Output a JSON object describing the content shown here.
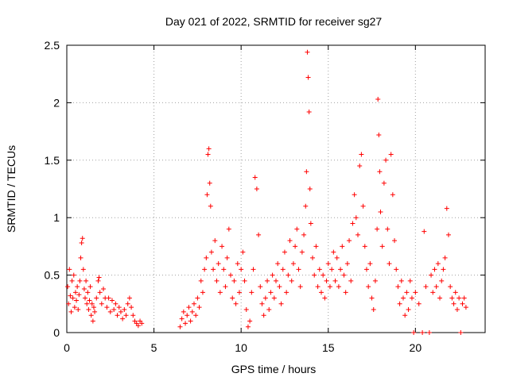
{
  "chart_data": {
    "type": "scatter",
    "title": "Day 021 of 2022, SRMTID for receiver sg27",
    "xlabel": "GPS time / hours",
    "ylabel": "SRMTID / TECUs",
    "xlim": [
      0,
      24
    ],
    "ylim": [
      0,
      2.5
    ],
    "x_ticks": [
      0,
      5,
      10,
      15,
      20
    ],
    "x_tick_labels": [
      "0",
      "5",
      "10",
      "15",
      "20"
    ],
    "y_ticks": [
      0,
      0.5,
      1,
      1.5,
      2,
      2.5
    ],
    "y_tick_labels": [
      "0",
      "0.5",
      "1",
      "1.5",
      "2",
      "2.5"
    ],
    "grid": true,
    "series": [
      {
        "name": "SRMTID sg27",
        "marker": "+",
        "color": "#ff0000",
        "points": [
          [
            0.05,
            0.4
          ],
          [
            0.1,
            0.25
          ],
          [
            0.15,
            0.55
          ],
          [
            0.2,
            0.32
          ],
          [
            0.25,
            0.18
          ],
          [
            0.3,
            0.45
          ],
          [
            0.35,
            0.3
          ],
          [
            0.4,
            0.5
          ],
          [
            0.45,
            0.22
          ],
          [
            0.5,
            0.35
          ],
          [
            0.55,
            0.28
          ],
          [
            0.6,
            0.4
          ],
          [
            0.65,
            0.2
          ],
          [
            0.7,
            0.33
          ],
          [
            0.75,
            0.45
          ],
          [
            0.8,
            0.65
          ],
          [
            0.85,
            0.78
          ],
          [
            0.9,
            0.82
          ],
          [
            0.95,
            0.55
          ],
          [
            1.0,
            0.38
          ],
          [
            1.05,
            0.3
          ],
          [
            1.1,
            0.45
          ],
          [
            1.15,
            0.25
          ],
          [
            1.2,
            0.35
          ],
          [
            1.25,
            0.2
          ],
          [
            1.3,
            0.28
          ],
          [
            1.35,
            0.4
          ],
          [
            1.4,
            0.15
          ],
          [
            1.45,
            0.25
          ],
          [
            1.5,
            0.1
          ],
          [
            1.55,
            0.22
          ],
          [
            1.6,
            0.18
          ],
          [
            1.7,
            0.3
          ],
          [
            1.8,
            0.45
          ],
          [
            1.85,
            0.48
          ],
          [
            1.9,
            0.35
          ],
          [
            2.0,
            0.25
          ],
          [
            2.1,
            0.38
          ],
          [
            2.2,
            0.3
          ],
          [
            2.3,
            0.22
          ],
          [
            2.4,
            0.3
          ],
          [
            2.5,
            0.18
          ],
          [
            2.6,
            0.28
          ],
          [
            2.7,
            0.2
          ],
          [
            2.8,
            0.25
          ],
          [
            2.9,
            0.15
          ],
          [
            3.0,
            0.22
          ],
          [
            3.1,
            0.18
          ],
          [
            3.2,
            0.12
          ],
          [
            3.3,
            0.2
          ],
          [
            3.4,
            0.15
          ],
          [
            3.5,
            0.25
          ],
          [
            3.6,
            0.3
          ],
          [
            3.7,
            0.22
          ],
          [
            3.8,
            0.15
          ],
          [
            3.9,
            0.1
          ],
          [
            4.0,
            0.08
          ],
          [
            4.1,
            0.06
          ],
          [
            4.2,
            0.1
          ],
          [
            4.3,
            0.08
          ],
          [
            6.5,
            0.05
          ],
          [
            6.6,
            0.12
          ],
          [
            6.7,
            0.18
          ],
          [
            6.8,
            0.08
          ],
          [
            6.9,
            0.15
          ],
          [
            7.0,
            0.22
          ],
          [
            7.1,
            0.1
          ],
          [
            7.2,
            0.18
          ],
          [
            7.3,
            0.25
          ],
          [
            7.4,
            0.15
          ],
          [
            7.5,
            0.3
          ],
          [
            7.6,
            0.22
          ],
          [
            7.7,
            0.45
          ],
          [
            7.8,
            0.35
          ],
          [
            7.9,
            0.55
          ],
          [
            8.0,
            0.65
          ],
          [
            8.05,
            1.2
          ],
          [
            8.1,
            1.55
          ],
          [
            8.15,
            1.6
          ],
          [
            8.2,
            1.3
          ],
          [
            8.25,
            1.1
          ],
          [
            8.3,
            0.7
          ],
          [
            8.4,
            0.55
          ],
          [
            8.5,
            0.8
          ],
          [
            8.6,
            0.45
          ],
          [
            8.7,
            0.6
          ],
          [
            8.8,
            0.35
          ],
          [
            8.9,
            0.75
          ],
          [
            9.0,
            0.55
          ],
          [
            9.1,
            0.4
          ],
          [
            9.2,
            0.65
          ],
          [
            9.3,
            0.9
          ],
          [
            9.4,
            0.5
          ],
          [
            9.5,
            0.3
          ],
          [
            9.6,
            0.45
          ],
          [
            9.7,
            0.25
          ],
          [
            9.8,
            0.6
          ],
          [
            9.9,
            0.35
          ],
          [
            10.0,
            0.55
          ],
          [
            10.1,
            0.7
          ],
          [
            10.2,
            0.45
          ],
          [
            10.3,
            0.2
          ],
          [
            10.4,
            0.05
          ],
          [
            10.5,
            0.1
          ],
          [
            10.6,
            0.35
          ],
          [
            10.7,
            0.55
          ],
          [
            10.8,
            1.35
          ],
          [
            10.9,
            1.25
          ],
          [
            11.0,
            0.85
          ],
          [
            11.1,
            0.4
          ],
          [
            11.2,
            0.25
          ],
          [
            11.3,
            0.15
          ],
          [
            11.4,
            0.3
          ],
          [
            11.5,
            0.45
          ],
          [
            11.6,
            0.2
          ],
          [
            11.7,
            0.35
          ],
          [
            11.8,
            0.5
          ],
          [
            11.9,
            0.3
          ],
          [
            12.0,
            0.45
          ],
          [
            12.1,
            0.6
          ],
          [
            12.2,
            0.4
          ],
          [
            12.3,
            0.25
          ],
          [
            12.4,
            0.55
          ],
          [
            12.5,
            0.7
          ],
          [
            12.6,
            0.35
          ],
          [
            12.7,
            0.5
          ],
          [
            12.8,
            0.8
          ],
          [
            12.9,
            0.45
          ],
          [
            13.0,
            0.6
          ],
          [
            13.1,
            0.75
          ],
          [
            13.2,
            0.9
          ],
          [
            13.3,
            0.55
          ],
          [
            13.4,
            0.4
          ],
          [
            13.5,
            0.7
          ],
          [
            13.6,
            0.85
          ],
          [
            13.7,
            1.1
          ],
          [
            13.75,
            1.4
          ],
          [
            13.8,
            2.44
          ],
          [
            13.85,
            2.22
          ],
          [
            13.9,
            1.92
          ],
          [
            13.95,
            1.25
          ],
          [
            14.0,
            0.95
          ],
          [
            14.1,
            0.65
          ],
          [
            14.2,
            0.5
          ],
          [
            14.3,
            0.75
          ],
          [
            14.4,
            0.4
          ],
          [
            14.5,
            0.55
          ],
          [
            14.6,
            0.35
          ],
          [
            14.7,
            0.5
          ],
          [
            14.8,
            0.3
          ],
          [
            14.9,
            0.45
          ],
          [
            15.0,
            0.6
          ],
          [
            15.1,
            0.4
          ],
          [
            15.2,
            0.55
          ],
          [
            15.3,
            0.7
          ],
          [
            15.4,
            0.45
          ],
          [
            15.5,
            0.65
          ],
          [
            15.6,
            0.4
          ],
          [
            15.7,
            0.55
          ],
          [
            15.8,
            0.75
          ],
          [
            15.9,
            0.5
          ],
          [
            16.0,
            0.35
          ],
          [
            16.1,
            0.6
          ],
          [
            16.2,
            0.8
          ],
          [
            16.3,
            0.45
          ],
          [
            16.4,
            0.95
          ],
          [
            16.5,
            1.2
          ],
          [
            16.6,
            1.0
          ],
          [
            16.7,
            0.85
          ],
          [
            16.8,
            1.45
          ],
          [
            16.9,
            1.55
          ],
          [
            17.0,
            1.1
          ],
          [
            17.1,
            0.75
          ],
          [
            17.2,
            0.55
          ],
          [
            17.3,
            0.4
          ],
          [
            17.4,
            0.6
          ],
          [
            17.5,
            0.3
          ],
          [
            17.6,
            0.2
          ],
          [
            17.7,
            0.45
          ],
          [
            17.8,
            0.9
          ],
          [
            17.85,
            2.03
          ],
          [
            17.9,
            1.72
          ],
          [
            17.95,
            1.4
          ],
          [
            18.0,
            1.05
          ],
          [
            18.1,
            0.75
          ],
          [
            18.2,
            1.3
          ],
          [
            18.3,
            1.5
          ],
          [
            18.4,
            0.9
          ],
          [
            18.5,
            0.6
          ],
          [
            18.6,
            1.55
          ],
          [
            18.7,
            1.2
          ],
          [
            18.8,
            0.8
          ],
          [
            18.9,
            0.55
          ],
          [
            19.0,
            0.4
          ],
          [
            19.1,
            0.25
          ],
          [
            19.2,
            0.45
          ],
          [
            19.3,
            0.3
          ],
          [
            19.4,
            0.15
          ],
          [
            19.5,
            0.35
          ],
          [
            19.6,
            0.2
          ],
          [
            19.7,
            0.45
          ],
          [
            19.8,
            0.3
          ],
          [
            19.9,
            0.0
          ],
          [
            20.0,
            0.35
          ],
          [
            20.2,
            0.25
          ],
          [
            20.4,
            0.0
          ],
          [
            20.5,
            0.88
          ],
          [
            20.6,
            0.4
          ],
          [
            20.8,
            0.0
          ],
          [
            20.9,
            0.5
          ],
          [
            21.0,
            0.35
          ],
          [
            21.1,
            0.55
          ],
          [
            21.2,
            0.4
          ],
          [
            21.3,
            0.6
          ],
          [
            21.4,
            0.3
          ],
          [
            21.5,
            0.45
          ],
          [
            21.6,
            0.55
          ],
          [
            21.7,
            0.65
          ],
          [
            21.8,
            1.08
          ],
          [
            21.9,
            0.85
          ],
          [
            22.0,
            0.4
          ],
          [
            22.1,
            0.3
          ],
          [
            22.2,
            0.25
          ],
          [
            22.3,
            0.35
          ],
          [
            22.4,
            0.2
          ],
          [
            22.5,
            0.3
          ],
          [
            22.6,
            0.0
          ],
          [
            22.7,
            0.25
          ],
          [
            22.8,
            0.3
          ],
          [
            22.9,
            0.22
          ]
        ]
      }
    ]
  }
}
